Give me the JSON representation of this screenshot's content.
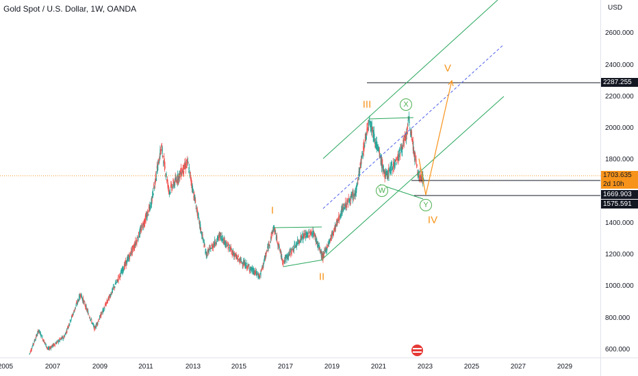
{
  "header": {
    "symbol_title": "Gold Spot / U.S. Dollar, 1W, OANDA"
  },
  "price_axis": {
    "currency": "USD",
    "labels": [
      "2600.000",
      "2400.000",
      "2200.000",
      "2000.000",
      "1800.000",
      "1400.000",
      "1200.000",
      "1000.000",
      "800.000",
      "600.000"
    ]
  },
  "time_axis": {
    "labels": [
      "2005",
      "2007",
      "2009",
      "2011",
      "2013",
      "2015",
      "2017",
      "2019",
      "2021",
      "2023",
      "2025",
      "2027",
      "2029"
    ]
  },
  "price_tags": {
    "target": "2287.255",
    "last_price": "1703.635",
    "countdown": "2d 10h",
    "support_1": "1669.903",
    "support_2": "1575.591"
  },
  "waves": {
    "i": "I",
    "ii": "II",
    "iii": "III",
    "iv": "IV",
    "v": "V"
  },
  "corrective": {
    "w": "W",
    "x": "X",
    "y": "Y"
  },
  "colors": {
    "bull_candle": "#26a69a",
    "bear_candle": "#ef5350",
    "channel": "#26a65b",
    "median_line": "#4d5fe8",
    "wave_path": "#f7931a",
    "horizontal_line": "#131722",
    "last_price_line": "#f7931a"
  },
  "icons": {
    "event_flag": "us-flag-icon"
  }
}
